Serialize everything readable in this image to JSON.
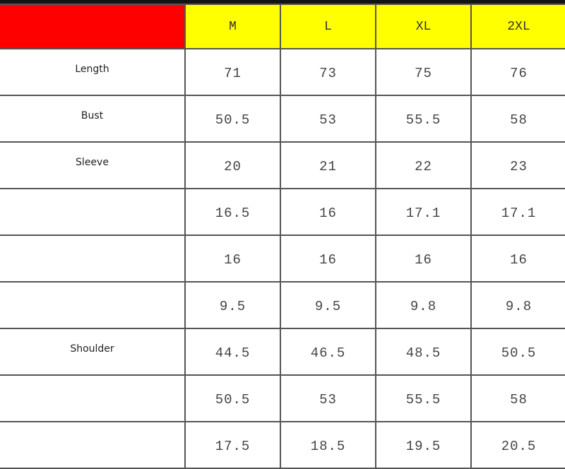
{
  "colors": {
    "corner": "#ff0000",
    "header": "#ffff00",
    "border": "#555555"
  },
  "header": {
    "sizes": [
      "M",
      "L",
      "XL",
      "2XL"
    ]
  },
  "rows": [
    {
      "label": "Length",
      "values": [
        "71",
        "73",
        "75",
        "76"
      ]
    },
    {
      "label": "Bust",
      "values": [
        "50.5",
        "53",
        "55.5",
        "58"
      ]
    },
    {
      "label": "Sleeve",
      "values": [
        "20",
        "21",
        "22",
        "23"
      ]
    },
    {
      "label": "",
      "values": [
        "16.5",
        "16",
        "17.1",
        "17.1"
      ]
    },
    {
      "label": "",
      "values": [
        "16",
        "16",
        "16",
        "16"
      ]
    },
    {
      "label": "",
      "values": [
        "9.5",
        "9.5",
        "9.8",
        "9.8"
      ]
    },
    {
      "label": "Shoulder",
      "values": [
        "44.5",
        "46.5",
        "48.5",
        "50.5"
      ]
    },
    {
      "label": "",
      "values": [
        "50.5",
        "53",
        "55.5",
        "58"
      ]
    },
    {
      "label": "",
      "values": [
        "17.5",
        "18.5",
        "19.5",
        "20.5"
      ]
    }
  ]
}
